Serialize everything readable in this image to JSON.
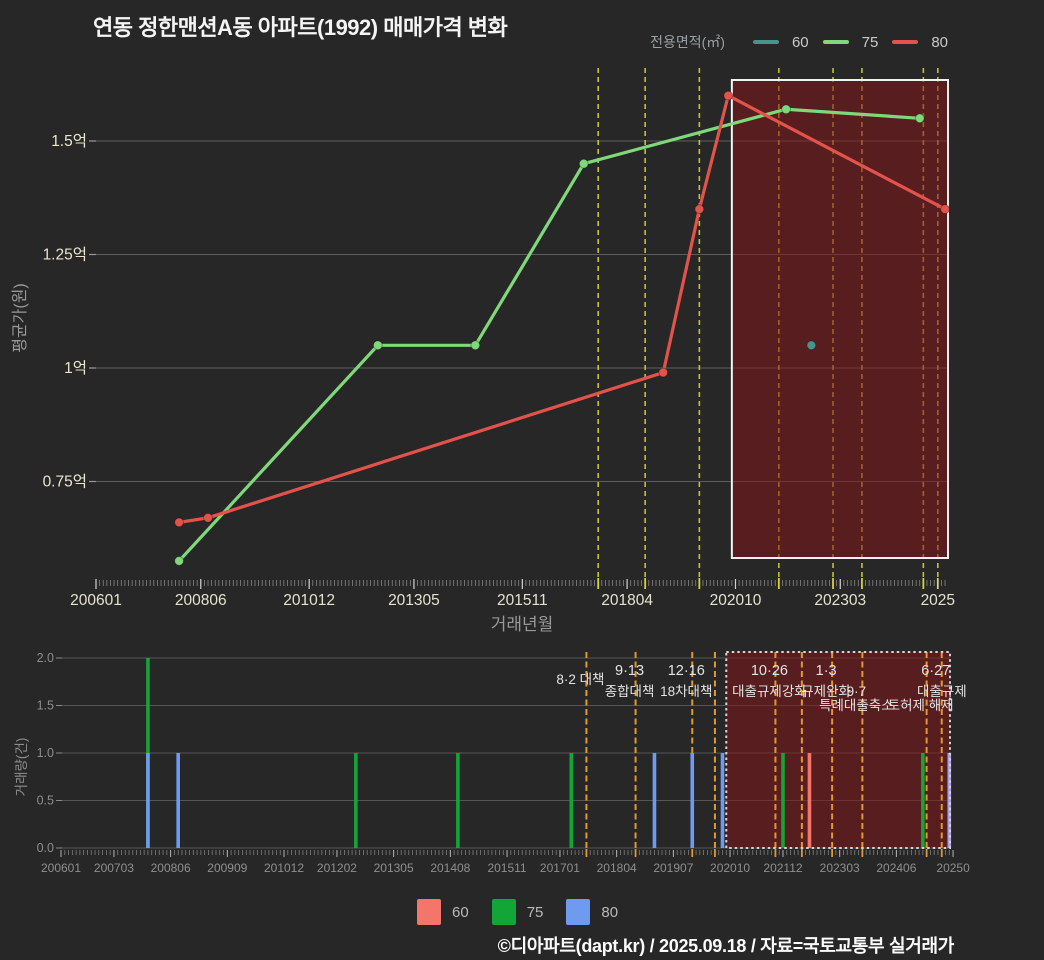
{
  "header": {
    "title": "연동 정한맨션A동 아파트(1992) 매매가격 변화"
  },
  "top_legend": {
    "label": "전용면적(㎡)",
    "items": [
      {
        "label": "60",
        "color": "#47948e"
      },
      {
        "label": "75",
        "color": "#7fd97a"
      },
      {
        "label": "80",
        "color": "#e4534b"
      }
    ]
  },
  "bottom_legend": {
    "items": [
      {
        "label": "60",
        "color": "#f4766a"
      },
      {
        "label": "75",
        "color": "#12a537"
      },
      {
        "label": "80",
        "color": "#6e9bf0"
      }
    ]
  },
  "footer": {
    "credit": "©디아파트(dapt.kr) / 2025.09.18 / 자료=국토교통부 실거래가"
  },
  "chart_data": [
    {
      "type": "line",
      "title": "연동 정한맨션A동 아파트(1992) 매매가격 변화",
      "xlabel": "거래년월",
      "ylabel": "평균가(원)",
      "unit": "억",
      "ylim": [
        0.54,
        1.645
      ],
      "grid": "horizontal",
      "legend_position": "top-right",
      "y_ticks": [
        [
          "1.5억",
          1.5
        ],
        [
          "1.25억",
          1.25
        ],
        [
          "1억",
          1.0
        ],
        [
          "0.75억",
          0.75
        ]
      ],
      "x_ticks": [
        [
          "200601",
          "2006-01"
        ],
        [
          "200806",
          "2008-06"
        ],
        [
          "201012",
          "2010-12"
        ],
        [
          "201305",
          "2013-05"
        ],
        [
          "201511",
          "2015-11"
        ],
        [
          "201804",
          "2018-04"
        ],
        [
          "202010",
          "2020-10"
        ],
        [
          "202303",
          "2023-03"
        ],
        [
          "2025",
          "2025-06"
        ]
      ],
      "series": [
        {
          "name": "60",
          "color": "#47948e",
          "points": [
            [
              "2022-07",
              1.05
            ]
          ]
        },
        {
          "name": "75",
          "color": "#7fd97a",
          "points": [
            [
              "2007-12",
              0.575
            ],
            [
              "2012-07",
              1.05
            ],
            [
              "2014-10",
              1.05
            ],
            [
              "2017-04",
              1.45
            ],
            [
              "2021-12",
              1.57
            ],
            [
              "2025-01",
              1.55
            ]
          ]
        },
        {
          "name": "80",
          "color": "#e4534b",
          "points": [
            [
              "2007-12",
              0.66
            ],
            [
              "2008-08",
              0.67
            ],
            [
              "2019-02",
              0.99
            ],
            [
              "2019-12",
              1.35
            ],
            [
              "2020-08",
              1.6
            ],
            [
              "2025-08",
              1.35
            ]
          ]
        }
      ],
      "policy_lines": [
        "2017-08",
        "2018-09",
        "2019-12",
        "2021-10",
        "2023-01",
        "2023-09",
        "2025-02",
        "2025-06"
      ],
      "highlight_box": {
        "from": "2020-09",
        "to": "2025-09"
      }
    },
    {
      "type": "bar",
      "xlabel": "",
      "ylabel": "거래량(건)",
      "ylim": [
        0,
        2
      ],
      "y_ticks": [
        [
          "2.0",
          2.0
        ],
        [
          "1.5",
          1.5
        ],
        [
          "1.0",
          1.0
        ],
        [
          "0.5",
          0.5
        ],
        [
          "0.0",
          0.0
        ]
      ],
      "x_ticks": [
        [
          "200601",
          "2006-01"
        ],
        [
          "200703",
          "2007-03"
        ],
        [
          "200806",
          "2008-06"
        ],
        [
          "200909",
          "2009-09"
        ],
        [
          "201012",
          "2010-12"
        ],
        [
          "201202",
          "2012-02"
        ],
        [
          "201305",
          "2013-05"
        ],
        [
          "201408",
          "2014-08"
        ],
        [
          "201511",
          "2015-11"
        ],
        [
          "201701",
          "2017-01"
        ],
        [
          "201804",
          "2018-04"
        ],
        [
          "201907",
          "2019-07"
        ],
        [
          "202010",
          "2020-10"
        ],
        [
          "202112",
          "2021-12"
        ],
        [
          "202303",
          "2023-03"
        ],
        [
          "202406",
          "2024-06"
        ],
        [
          "20250",
          "2025-09"
        ]
      ],
      "series_colors": {
        "60": "#f4766a",
        "75": "#12a537",
        "80": "#6e9bf0"
      },
      "bars": [
        [
          "2007-12",
          "75",
          2
        ],
        [
          "2007-12",
          "80",
          1
        ],
        [
          "2008-08",
          "80",
          1
        ],
        [
          "2012-07",
          "75",
          1
        ],
        [
          "2014-10",
          "75",
          1
        ],
        [
          "2017-04",
          "75",
          1
        ],
        [
          "2019-02",
          "80",
          1
        ],
        [
          "2019-12",
          "80",
          1
        ],
        [
          "2020-08",
          "80",
          1
        ],
        [
          "2021-12",
          "75",
          1
        ],
        [
          "2022-07",
          "60",
          1
        ],
        [
          "2025-01",
          "75",
          1
        ],
        [
          "2025-08",
          "80",
          1,
          "#a8a2e2"
        ]
      ],
      "policy_lines": [
        {
          "date": "2017-08",
          "labels": {
            "mid": "8·2 대책"
          }
        },
        {
          "date": "2018-09",
          "labels": {
            "r1": "9·13",
            "r2": "종합대책"
          }
        },
        {
          "date": "2019-12",
          "labels": {
            "r1": "12·16",
            "r2": "18차대책"
          }
        },
        {
          "date": "2020-06",
          "labels": {}
        },
        {
          "date": "2021-10",
          "labels": {
            "r1": "10·26",
            "r2": "대출규제강화"
          }
        },
        {
          "date": "2022-05",
          "labels": {}
        },
        {
          "date": "2023-01",
          "labels": {
            "r1": "1·3",
            "r2": "규제완화"
          }
        },
        {
          "date": "2023-09",
          "labels": {
            "r2": "9·7",
            "r3": "특례대출축소"
          }
        },
        {
          "date": "2025-02",
          "labels": {
            "r3": "토허제 해제"
          }
        },
        {
          "date": "2025-06",
          "labels": {
            "r1": "6·27",
            "r2": "대출규제"
          },
          "clip": "right-edge"
        }
      ],
      "highlight_box": {
        "from": "2020-09",
        "to": "2025-09"
      }
    }
  ]
}
